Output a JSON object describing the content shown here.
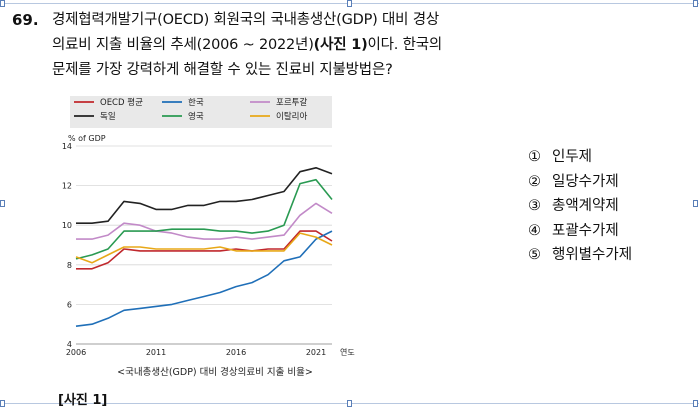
{
  "question": {
    "number": "69.",
    "line1": "경제협력개발기구(OECD) 회원국의 국내총생산(GDP) 대비 경상",
    "line2_pre": "의료비 지출 비율의 추세(2006 ~ 2022년)",
    "line2_bold": "(사진 1)",
    "line2_post": "이다. 한국의",
    "line3": "문제를 가장 강력하게 해결할 수 있는 진료비 지불방법은?"
  },
  "options": [
    {
      "mark": "①",
      "label": "인두제"
    },
    {
      "mark": "②",
      "label": "일당수가제"
    },
    {
      "mark": "③",
      "label": "총액계약제"
    },
    {
      "mark": "④",
      "label": "포괄수가제"
    },
    {
      "mark": "⑤",
      "label": "행위별수가제"
    }
  ],
  "figure": {
    "caption": "<국내총생산(GDP) 대비 경상의료비 지출 비율>",
    "photo_label": "[사진 1]"
  },
  "chart_data": {
    "type": "line",
    "ylabel": "% of GDP",
    "xlabel": "연도",
    "ylim": [
      4,
      14
    ],
    "xlim": [
      2006,
      2022
    ],
    "yticks": [
      4,
      6,
      8,
      10,
      12,
      14
    ],
    "xticks": [
      2006,
      2011,
      2016,
      2021
    ],
    "legend_placement": "top",
    "series": [
      {
        "name": "OECD 평균",
        "color": "#c0282d",
        "x": [
          2006,
          2007,
          2008,
          2009,
          2010,
          2011,
          2012,
          2013,
          2014,
          2015,
          2016,
          2017,
          2018,
          2019,
          2020,
          2021,
          2022
        ],
        "y": [
          7.8,
          7.8,
          8.1,
          8.8,
          8.7,
          8.7,
          8.7,
          8.7,
          8.7,
          8.7,
          8.8,
          8.7,
          8.8,
          8.8,
          9.7,
          9.7,
          9.2
        ]
      },
      {
        "name": "한국",
        "color": "#1f6fb8",
        "x": [
          2006,
          2007,
          2008,
          2009,
          2010,
          2011,
          2012,
          2013,
          2014,
          2015,
          2016,
          2017,
          2018,
          2019,
          2020,
          2021,
          2022
        ],
        "y": [
          4.9,
          5.0,
          5.3,
          5.7,
          5.8,
          5.9,
          6.0,
          6.2,
          6.4,
          6.6,
          6.9,
          7.1,
          7.5,
          8.2,
          8.4,
          9.3,
          9.7
        ]
      },
      {
        "name": "포르투갈",
        "color": "#c28ac8",
        "x": [
          2006,
          2007,
          2008,
          2009,
          2010,
          2011,
          2012,
          2013,
          2014,
          2015,
          2016,
          2017,
          2018,
          2019,
          2020,
          2021,
          2022
        ],
        "y": [
          9.3,
          9.3,
          9.5,
          10.1,
          10.0,
          9.7,
          9.6,
          9.4,
          9.3,
          9.3,
          9.4,
          9.3,
          9.4,
          9.5,
          10.5,
          11.1,
          10.6
        ]
      },
      {
        "name": "독일",
        "color": "#222222",
        "x": [
          2006,
          2007,
          2008,
          2009,
          2010,
          2011,
          2012,
          2013,
          2014,
          2015,
          2016,
          2017,
          2018,
          2019,
          2020,
          2021,
          2022
        ],
        "y": [
          10.1,
          10.1,
          10.2,
          11.2,
          11.1,
          10.8,
          10.8,
          11.0,
          11.0,
          11.2,
          11.2,
          11.3,
          11.5,
          11.7,
          12.7,
          12.9,
          12.6
        ]
      },
      {
        "name": "영국",
        "color": "#2a9a52",
        "x": [
          2006,
          2007,
          2008,
          2009,
          2010,
          2011,
          2012,
          2013,
          2014,
          2015,
          2016,
          2017,
          2018,
          2019,
          2020,
          2021,
          2022
        ],
        "y": [
          8.3,
          8.5,
          8.8,
          9.7,
          9.7,
          9.7,
          9.8,
          9.8,
          9.8,
          9.7,
          9.7,
          9.6,
          9.7,
          10.0,
          12.1,
          12.3,
          11.3
        ]
      },
      {
        "name": "이탈리아",
        "color": "#e8a818",
        "x": [
          2006,
          2007,
          2008,
          2009,
          2010,
          2011,
          2012,
          2013,
          2014,
          2015,
          2016,
          2017,
          2018,
          2019,
          2020,
          2021,
          2022
        ],
        "y": [
          8.4,
          8.1,
          8.5,
          8.9,
          8.9,
          8.8,
          8.8,
          8.8,
          8.8,
          8.9,
          8.7,
          8.7,
          8.7,
          8.7,
          9.6,
          9.4,
          9.0
        ]
      }
    ]
  }
}
